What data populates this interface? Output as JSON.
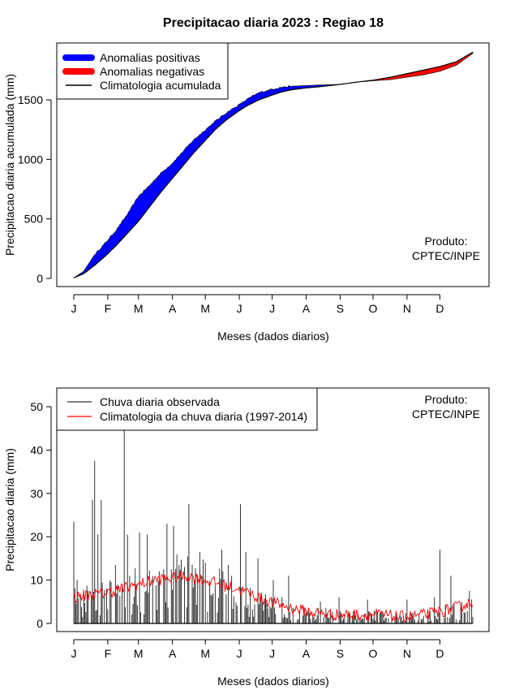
{
  "chart_data": [
    {
      "type": "area",
      "title": "Precipitacao diaria 2023 : Regiao 18",
      "xlabel": "Meses (dados diarios)",
      "ylabel": "Precipitacao diaria acumulada (mm)",
      "xlim": [
        1,
        365
      ],
      "ylim": [
        -60,
        1960
      ],
      "yticks": [
        0,
        500,
        1000,
        1500
      ],
      "month_ticks": [
        "J",
        "F",
        "M",
        "A",
        "M",
        "J",
        "J",
        "A",
        "S",
        "O",
        "N",
        "D"
      ],
      "month_start_day": [
        1,
        32,
        60,
        91,
        121,
        152,
        182,
        213,
        244,
        274,
        305,
        335
      ],
      "legend": [
        "Anomalias positivas",
        "Anomalias negativas",
        "Climatologia acumulada"
      ],
      "legend_position": "top-left",
      "colors": {
        "positive": "#0000ff",
        "negative": "#ff0000",
        "climatology": "#000000"
      },
      "annotation": [
        "Produto:",
        "CPTEC/INPE"
      ],
      "observed_cumulative": {
        "day": [
          1,
          10,
          20,
          30,
          40,
          50,
          60,
          70,
          80,
          90,
          100,
          110,
          120,
          130,
          140,
          152,
          160,
          170,
          182,
          190,
          200,
          213,
          225,
          244,
          260,
          274,
          290,
          305,
          320,
          335,
          350,
          365
        ],
        "value_mm": [
          5,
          60,
          200,
          300,
          410,
          540,
          690,
          780,
          880,
          960,
          1060,
          1160,
          1240,
          1320,
          1390,
          1460,
          1510,
          1560,
          1590,
          1605,
          1615,
          1620,
          1625,
          1630,
          1650,
          1660,
          1670,
          1690,
          1710,
          1740,
          1790,
          1890
        ]
      },
      "climatology_cumulative": {
        "day": [
          1,
          10,
          20,
          30,
          40,
          50,
          60,
          70,
          80,
          90,
          100,
          110,
          120,
          130,
          140,
          152,
          160,
          170,
          182,
          190,
          200,
          213,
          225,
          244,
          260,
          274,
          290,
          305,
          320,
          335,
          350,
          365
        ],
        "value_mm": [
          5,
          40,
          110,
          190,
          280,
          380,
          480,
          600,
          720,
          830,
          940,
          1050,
          1150,
          1250,
          1330,
          1410,
          1455,
          1500,
          1540,
          1565,
          1585,
          1600,
          1610,
          1630,
          1650,
          1665,
          1690,
          1720,
          1750,
          1780,
          1820,
          1900
        ]
      }
    },
    {
      "type": "bar",
      "xlabel": "Meses (dados diarios)",
      "ylabel": "Precipitacao diaria (mm)",
      "xlim": [
        1,
        365
      ],
      "ylim": [
        -1.5,
        54.5
      ],
      "yticks": [
        0,
        10,
        20,
        30,
        40,
        50
      ],
      "month_ticks": [
        "J",
        "F",
        "M",
        "A",
        "M",
        "J",
        "J",
        "A",
        "S",
        "O",
        "N",
        "D"
      ],
      "month_start_day": [
        1,
        32,
        60,
        91,
        121,
        152,
        182,
        213,
        244,
        274,
        305,
        335
      ],
      "legend": [
        "Chuva diaria observada",
        "Climatologia da chuva diaria (1997-2014)"
      ],
      "legend_position": "top-left",
      "colors": {
        "observed": "#333333",
        "climatology": "#ff0000"
      },
      "annotation": [
        "Produto:",
        "CPTEC/INPE"
      ],
      "observed_daily_peaks": {
        "day": [
          1,
          4,
          18,
          20,
          23,
          26,
          39,
          47,
          50,
          61,
          68,
          79,
          86,
          92,
          97,
          106,
          116,
          121,
          136,
          137,
          142,
          153,
          158,
          169,
          183,
          197,
          226,
          231,
          243,
          269,
          305,
          330,
          335,
          345,
          362
        ],
        "value_mm": [
          23.5,
          10,
          28.5,
          37.5,
          20.5,
          28.5,
          13.5,
          44.5,
          20.5,
          21,
          20.5,
          12,
          23,
          22.5,
          13.5,
          27.5,
          16.5,
          14,
          17,
          12,
          13.5,
          27.5,
          16.5,
          15,
          10,
          11,
          5,
          3.5,
          6,
          5.5,
          5.5,
          6,
          17,
          11,
          7.5
        ]
      },
      "climatology_daily": {
        "day": [
          1,
          15,
          30,
          45,
          60,
          75,
          90,
          105,
          120,
          135,
          150,
          165,
          180,
          200,
          220,
          240,
          260,
          280,
          300,
          320,
          340,
          355,
          365
        ],
        "value_mm": [
          6,
          6.5,
          7,
          8,
          9,
          10,
          10.5,
          11,
          10,
          9,
          8,
          6.5,
          5,
          3.5,
          2.5,
          2,
          2,
          2,
          1.5,
          2,
          3,
          4,
          5
        ]
      }
    }
  ]
}
